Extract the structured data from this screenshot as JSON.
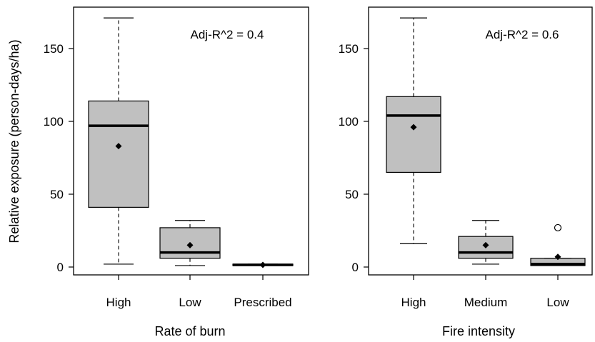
{
  "chart_data": [
    {
      "type": "box",
      "ylabel": "Relative exposure (person-days/ha)",
      "xlabel": "Rate of burn",
      "annotation": "Adj-R^2 = 0.4",
      "ylim": [
        0,
        175
      ],
      "yticks": [
        0,
        50,
        100,
        150
      ],
      "categories": [
        "High",
        "Low",
        "Prescribed"
      ],
      "box_fill": "#c0c0c0",
      "boxes": [
        {
          "whisker_low": 2,
          "q1": 41,
          "median": 97,
          "q3": 114,
          "whisker_high": 171,
          "mean": 83,
          "outliers": []
        },
        {
          "whisker_low": 1,
          "q1": 6,
          "median": 10,
          "q3": 27,
          "whisker_high": 32,
          "mean": 15,
          "outliers": []
        },
        {
          "whisker_low": 1,
          "q1": 1,
          "median": 1.5,
          "q3": 2,
          "whisker_high": 2,
          "mean": 1.5,
          "outliers": []
        }
      ]
    },
    {
      "type": "box",
      "ylabel": "",
      "xlabel": "Fire intensity",
      "annotation": "Adj-R^2 = 0.6",
      "ylim": [
        0,
        175
      ],
      "yticks": [
        0,
        50,
        100,
        150
      ],
      "categories": [
        "High",
        "Medium",
        "Low"
      ],
      "box_fill": "#c0c0c0",
      "boxes": [
        {
          "whisker_low": 16,
          "q1": 65,
          "median": 104,
          "q3": 117,
          "whisker_high": 171,
          "mean": 96,
          "outliers": []
        },
        {
          "whisker_low": 2,
          "q1": 6,
          "median": 10,
          "q3": 21,
          "whisker_high": 32,
          "mean": 15,
          "outliers": []
        },
        {
          "whisker_low": 1,
          "q1": 1,
          "median": 2,
          "q3": 6,
          "whisker_high": 6,
          "mean": 7,
          "outliers": [
            27
          ]
        }
      ]
    }
  ]
}
